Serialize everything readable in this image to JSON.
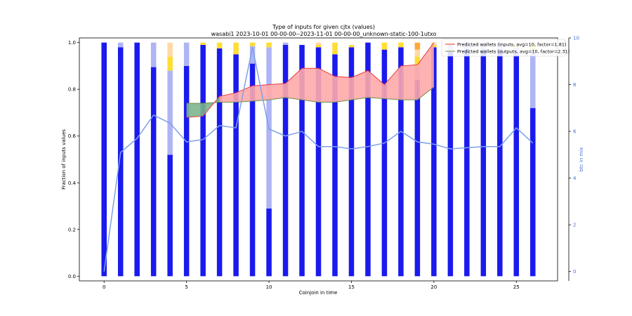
{
  "chart_data": {
    "type": "bar",
    "title": "Type of inputs for given cjtx (values)",
    "subtitle": "wasabi1 2023-10-01 00-00-00--2023-11-01 00-00-00_unknown-static-100-1utxo",
    "xlabel": "Coinjoin in time",
    "ylabel": "Fraction of inputs values",
    "y2label": "btc in mix",
    "xlim": [
      -1.5,
      27.5
    ],
    "ylim": [
      -0.02,
      1.02
    ],
    "y2lim": [
      -0.4,
      10.0
    ],
    "xticks": [
      0,
      5,
      10,
      15,
      20,
      25
    ],
    "yticks": [
      0.0,
      0.2,
      0.4,
      0.6,
      0.8,
      1.0
    ],
    "y2ticks": [
      0,
      2,
      4,
      6,
      8,
      10
    ],
    "y2tick_labels": [
      "0",
      "2",
      "4",
      "6",
      "8",
      "10"
    ],
    "x": [
      0,
      1,
      2,
      3,
      4,
      5,
      6,
      7,
      8,
      9,
      10,
      11,
      12,
      13,
      14,
      15,
      16,
      17,
      18,
      19,
      20,
      21,
      22,
      23,
      24,
      25,
      26
    ],
    "stack_series": [
      {
        "name": "",
        "color": "#1a1aee",
        "values": [
          1.0,
          0.98,
          1.0,
          0.895,
          0.52,
          0.9,
          0.99,
          0.975,
          0.95,
          0.91,
          0.29,
          0.99,
          0.99,
          0.98,
          0.95,
          0.98,
          1.0,
          0.97,
          0.98,
          0.84,
          0.98,
          0.96,
          0.97,
          0.97,
          0.97,
          0.95,
          0.72
        ]
      },
      {
        "name": "",
        "color": "#aeb4f4",
        "values": [
          0.0,
          0.02,
          0.0,
          0.105,
          0.36,
          0.1,
          0.0,
          0.0,
          0.0,
          0.075,
          0.69,
          0.01,
          0.0,
          0.0,
          0.0,
          0.0,
          0.0,
          0.0,
          0.0,
          0.06,
          0.0,
          0.03,
          0.03,
          0.03,
          0.03,
          0.03,
          0.25
        ]
      },
      {
        "name": "",
        "color": "#ffdd33",
        "values": [
          0.0,
          0.0,
          0.0,
          0.0,
          0.06,
          0.0,
          0.01,
          0.025,
          0.05,
          0.015,
          0.02,
          0.0,
          0.0,
          0.01,
          0.05,
          0.01,
          0.0,
          0.03,
          0.02,
          0.04,
          0.01,
          0.01,
          0.0,
          0.0,
          0.0,
          0.01,
          0.02
        ]
      },
      {
        "name": "",
        "color": "#ffd9a6",
        "values": [
          0.0,
          0.0,
          0.0,
          0.0,
          0.06,
          0.0,
          0.0,
          0.0,
          0.0,
          0.0,
          0.0,
          0.0,
          0.0,
          0.01,
          0.0,
          0.0,
          0.0,
          0.0,
          0.0,
          0.03,
          0.01,
          0.0,
          0.0,
          0.0,
          0.0,
          0.01,
          0.01
        ]
      },
      {
        "name": "",
        "color": "#ffaa33",
        "values": [
          0.0,
          0.0,
          0.0,
          0.0,
          0.0,
          0.0,
          0.0,
          0.0,
          0.0,
          0.0,
          0.0,
          0.0,
          0.0,
          0.0,
          0.0,
          0.0,
          0.0,
          0.0,
          0.0,
          0.03,
          0.0,
          0.0,
          0.0,
          0.0,
          0.0,
          0.0,
          0.0
        ]
      }
    ],
    "btc_in_mix": [
      0.0,
      5.1,
      5.7,
      6.7,
      6.35,
      5.55,
      5.65,
      6.25,
      6.15,
      9.6,
      6.1,
      5.8,
      6.0,
      5.35,
      5.35,
      5.25,
      5.35,
      5.5,
      6.0,
      5.55,
      5.45,
      5.25,
      5.3,
      5.35,
      5.35,
      6.15,
      5.5
    ],
    "predicted_wallets": {
      "x": [
        5,
        6,
        7,
        8,
        9,
        10,
        11,
        12,
        13,
        14,
        15,
        16,
        17,
        18,
        19,
        20
      ],
      "inputs": [
        0.68,
        0.685,
        0.77,
        0.785,
        0.815,
        0.82,
        0.825,
        0.89,
        0.89,
        0.855,
        0.85,
        0.88,
        0.82,
        0.9,
        0.905,
        1.0
      ],
      "outputs": [
        0.74,
        0.74,
        0.745,
        0.745,
        0.75,
        0.755,
        0.765,
        0.755,
        0.745,
        0.745,
        0.755,
        0.765,
        0.76,
        0.755,
        0.755,
        0.81
      ]
    },
    "legend": {
      "placement": "top-right",
      "entries": [
        "Predicted wallets (inputs, avg=10, factor=1.81)",
        "Predicted wallets (outputs, avg=10, factor=2.31)"
      ]
    },
    "colors": {
      "inputs_line": "#e83a3a",
      "inputs_fill": "#ffaaaa",
      "outputs_line": "#6b8f4a",
      "outputs_fill": "#7db58c",
      "btc_line": "#7ea0e8",
      "y2_axis": "#4a6fd8"
    }
  }
}
